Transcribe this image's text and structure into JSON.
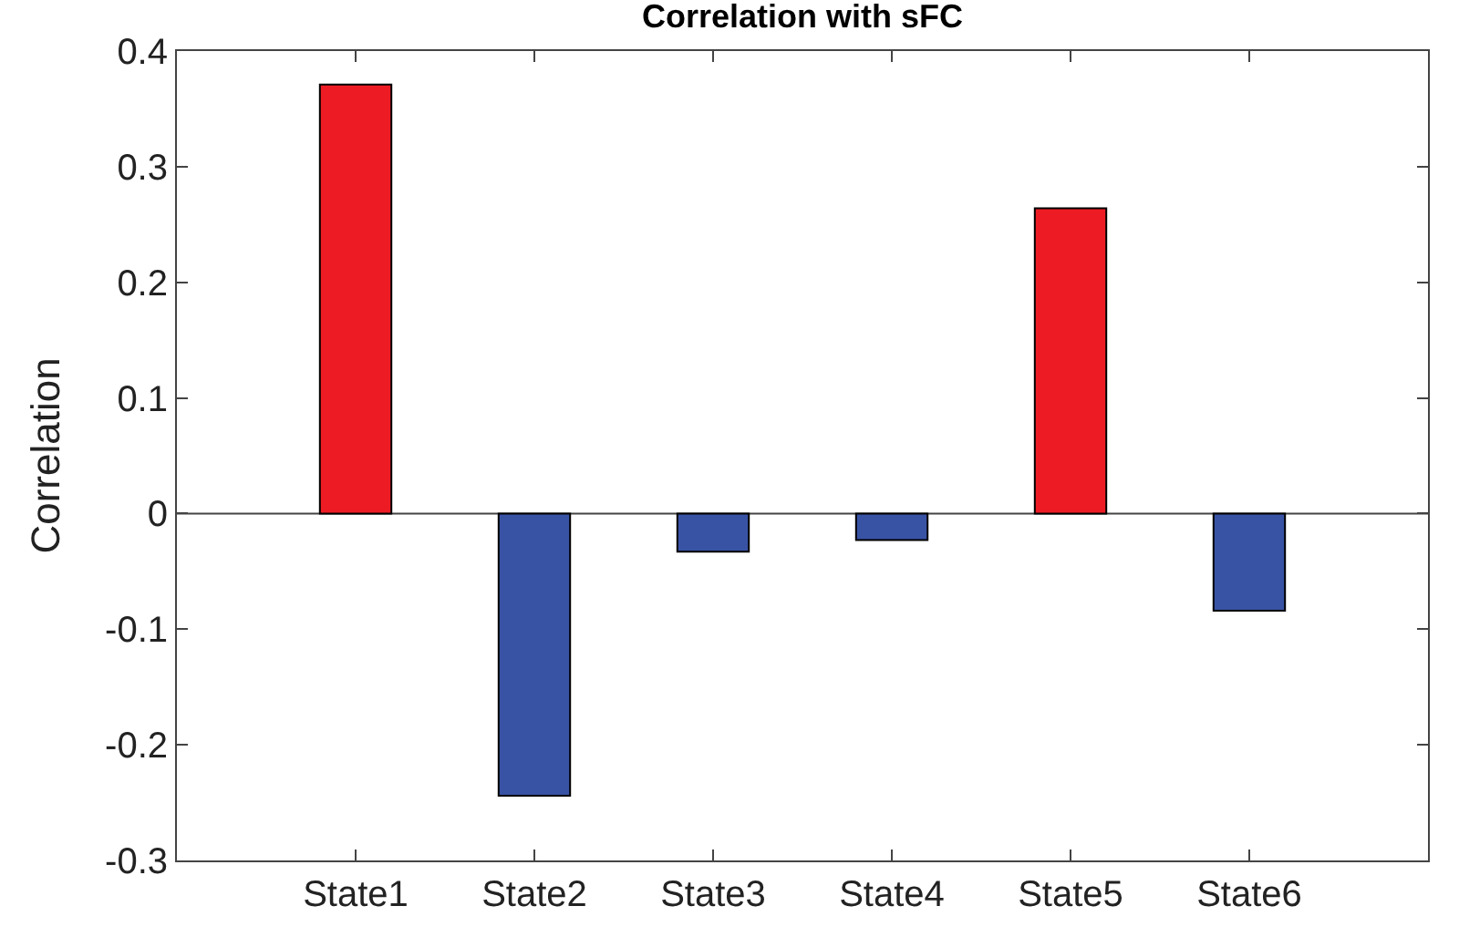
{
  "chart_data": {
    "type": "bar",
    "title": "Correlation with sFC",
    "ylabel": "Correlation",
    "categories": [
      "State1",
      "State2",
      "State3",
      "State4",
      "State5",
      "State6"
    ],
    "values": [
      0.371,
      -0.244,
      -0.033,
      -0.023,
      0.264,
      -0.084
    ],
    "colors": [
      "#ed1c24",
      "#3953a4",
      "#3953a4",
      "#3953a4",
      "#ed1c24",
      "#3953a4"
    ],
    "ylim": [
      -0.3,
      0.4
    ],
    "yticks": [
      {
        "value": -0.3,
        "label": "-0.3"
      },
      {
        "value": -0.2,
        "label": "-0.2"
      },
      {
        "value": -0.1,
        "label": "-0.1"
      },
      0,
      0.1,
      0.2,
      0.3,
      0.4
    ],
    "ref_lines": [
      {
        "axis": "y",
        "value": 0,
        "color": "#444444"
      }
    ],
    "grid": false
  }
}
